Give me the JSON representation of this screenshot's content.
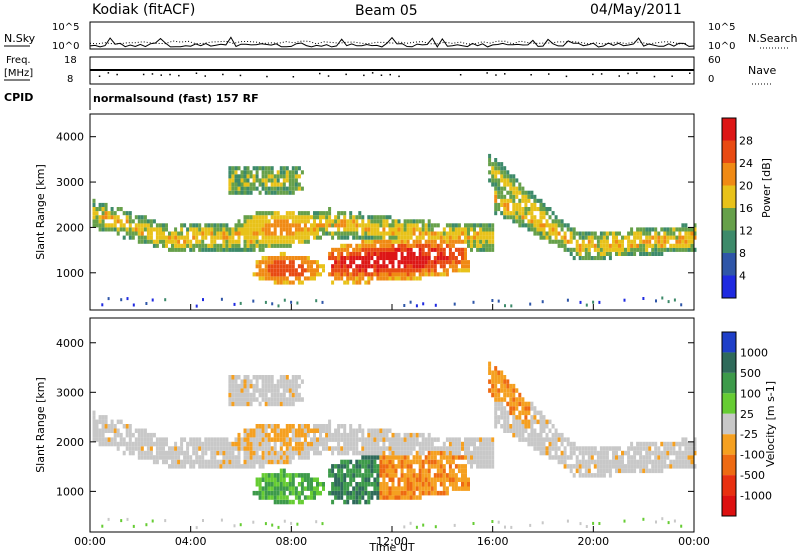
{
  "header": {
    "station": "Kodiak (fitACF)",
    "beam": "Beam 05",
    "date": "04/May/2011"
  },
  "panels": {
    "nsky": {
      "left_label": "N.Sky",
      "left_ticks": [
        "10^5",
        "10^0"
      ],
      "right_label": "N.Search",
      "right_ticks": [
        "10^5",
        "10^0"
      ]
    },
    "freq": {
      "left_label_1": "Freq.",
      "left_label_2": "[MHz]",
      "left_ticks": [
        "18",
        "8"
      ],
      "right_label": "Nave",
      "right_ticks": [
        "60",
        "0"
      ]
    },
    "cpid": {
      "label": "CPID",
      "text": "normalsound (fast) 157 RF"
    }
  },
  "chart_data": [
    {
      "type": "heatmap",
      "title": "Power",
      "ylabel": "Slant Range [km]",
      "xlabel": "Time UT",
      "xlim": [
        "00:00",
        "24:00"
      ],
      "ylim": [
        180,
        4500
      ],
      "y_ticks": [
        1000,
        2000,
        3000,
        4000
      ],
      "x_ticks": [
        "00:00",
        "04:00",
        "08:00",
        "12:00",
        "16:00",
        "20:00",
        "00:00"
      ],
      "colorbar": {
        "label": "Power [dB]",
        "ticks": [
          "4",
          "8",
          "12",
          "16",
          "20",
          "24",
          "28"
        ],
        "colors": [
          "#1f2ae0",
          "#2f56a8",
          "#3d8a6a",
          "#66a04a",
          "#e8c21a",
          "#f08a14",
          "#e84a12",
          "#dd1616"
        ]
      },
      "features": [
        {
          "name": "main echo band",
          "time_start": 0.2,
          "time_end": 23.8,
          "range_km": [
            1500,
            2300
          ]
        },
        {
          "name": "strong band",
          "time_start": 9.5,
          "time_end": 14.8,
          "range_km": [
            800,
            1800
          ]
        },
        {
          "name": "upper echo patch",
          "time_start": 5.5,
          "time_end": 8.2,
          "range_km": [
            2600,
            3400
          ]
        },
        {
          "name": "rising echo",
          "time_start": 16.0,
          "time_end": 19.5,
          "range_km": [
            1600,
            3500
          ]
        }
      ]
    },
    {
      "type": "heatmap",
      "title": "Velocity",
      "ylabel": "Slant Range [km]",
      "xlabel": "Time UT",
      "xlim": [
        "00:00",
        "24:00"
      ],
      "ylim": [
        180,
        4500
      ],
      "y_ticks": [
        1000,
        2000,
        3000,
        4000
      ],
      "x_ticks": [
        "00:00",
        "04:00",
        "08:00",
        "12:00",
        "16:00",
        "20:00",
        "00:00"
      ],
      "colorbar": {
        "label": "Velocity [m s-1]",
        "ticks": [
          "1000",
          "500",
          "100",
          "25",
          "-25",
          "-100",
          "-500",
          "-1000"
        ],
        "colors": [
          "#1f3fc8",
          "#2f6a5a",
          "#3d9a4a",
          "#66cc33",
          "#c8c8c8",
          "#f5a020",
          "#ee6a12",
          "#e83010",
          "#dd1010"
        ]
      }
    }
  ],
  "x_axis": {
    "ticks": [
      "00:00",
      "04:00",
      "08:00",
      "12:00",
      "16:00",
      "20:00",
      "00:00"
    ],
    "label": "Time UT"
  }
}
